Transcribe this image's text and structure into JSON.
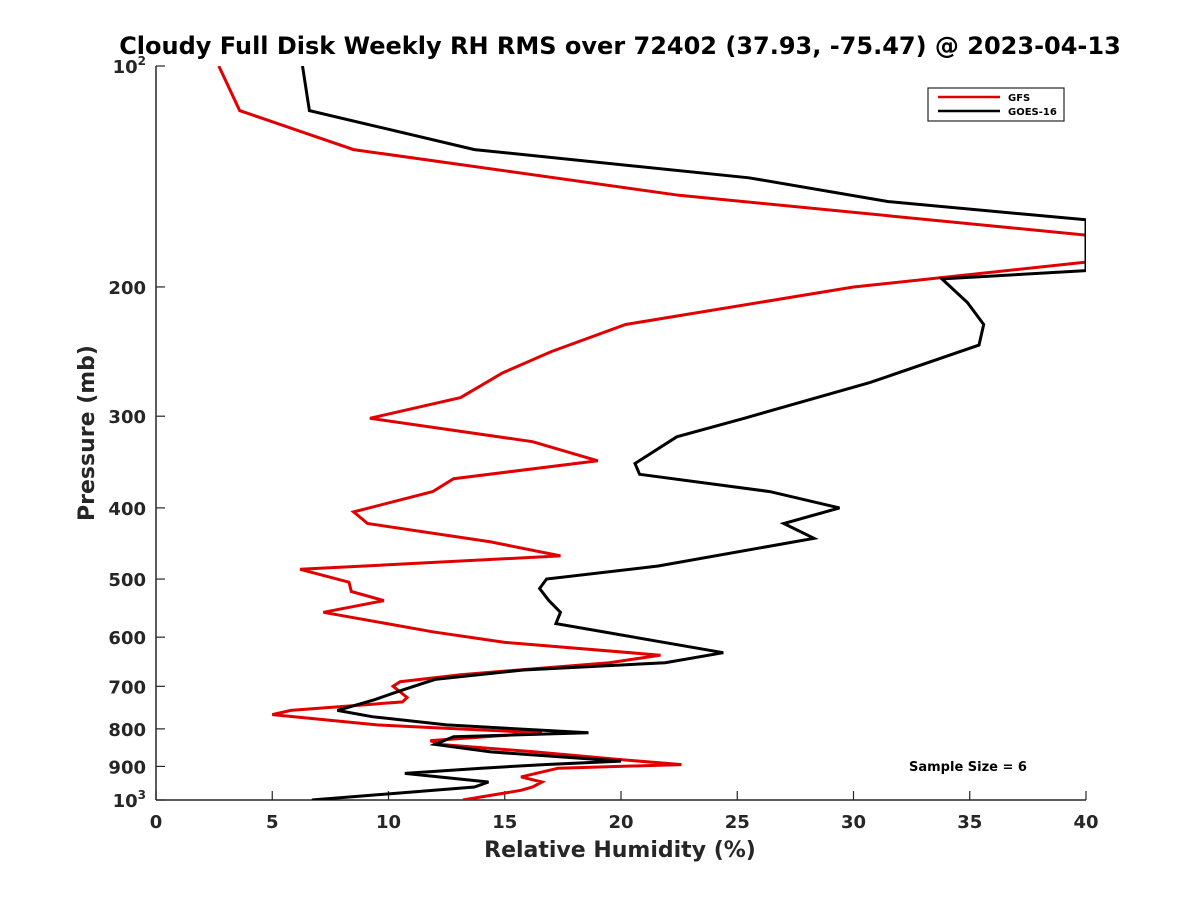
{
  "chart_data": {
    "type": "line",
    "title": "Cloudy Full Disk Weekly RH RMS over 72402 (37.93, -75.47) @ 2023-04-13",
    "xlabel": "Relative Humidity (%)",
    "ylabel": "Pressure (mb)",
    "xlim": [
      0,
      40
    ],
    "ylim": [
      100,
      1000
    ],
    "y_scale": "log",
    "y_reversed": true,
    "grid": false,
    "legend_position": "top-right",
    "x_ticks": [
      "0",
      "5",
      "10",
      "15",
      "20",
      "25",
      "30",
      "35",
      "40"
    ],
    "y_ticks": [
      {
        "value": 100,
        "base": "10",
        "exp": "2"
      },
      {
        "value": 200,
        "label": "200"
      },
      {
        "value": 300,
        "label": "300"
      },
      {
        "value": 400,
        "label": "400"
      },
      {
        "value": 500,
        "label": "500"
      },
      {
        "value": 600,
        "label": "600"
      },
      {
        "value": 700,
        "label": "700"
      },
      {
        "value": 800,
        "label": "800"
      },
      {
        "value": 900,
        "label": "900"
      },
      {
        "value": 1000,
        "base": "10",
        "exp": "3"
      }
    ],
    "annotation": "Sample Size = 6",
    "series": [
      {
        "name": "GFS",
        "color": "#e00000",
        "points": [
          [
            2.7,
            100
          ],
          [
            3.6,
            115
          ],
          [
            8.5,
            130
          ],
          [
            22.5,
            150
          ],
          [
            40,
            170
          ],
          [
            40,
            185
          ],
          [
            30,
            200
          ],
          [
            20.2,
            225
          ],
          [
            17,
            245
          ],
          [
            14.9,
            262
          ],
          [
            13.1,
            283
          ],
          [
            9.2,
            302
          ],
          [
            16.2,
            325
          ],
          [
            19.0,
            345
          ],
          [
            12.8,
            365
          ],
          [
            11.9,
            380
          ],
          [
            8.5,
            405
          ],
          [
            9.1,
            420
          ],
          [
            14.4,
            445
          ],
          [
            17.4,
            465
          ],
          [
            6.2,
            485
          ],
          [
            8.3,
            505
          ],
          [
            8.4,
            520
          ],
          [
            9.8,
            535
          ],
          [
            7.2,
            555
          ],
          [
            11.9,
            590
          ],
          [
            15.0,
            610
          ],
          [
            21.7,
            635
          ],
          [
            19.5,
            650
          ],
          [
            13.1,
            675
          ],
          [
            10.5,
            690
          ],
          [
            10.2,
            700
          ],
          [
            10.8,
            725
          ],
          [
            10.6,
            735
          ],
          [
            5.8,
            755
          ],
          [
            5.0,
            765
          ],
          [
            9.5,
            790
          ],
          [
            13.0,
            800
          ],
          [
            16.6,
            810
          ],
          [
            11.8,
            830
          ],
          [
            12.2,
            840
          ],
          [
            16.3,
            860
          ],
          [
            19.8,
            880
          ],
          [
            22.6,
            895
          ],
          [
            17.3,
            905
          ],
          [
            15.7,
            930
          ],
          [
            16.6,
            945
          ],
          [
            16.2,
            960
          ],
          [
            15.7,
            970
          ],
          [
            13.2,
            1000
          ]
        ]
      },
      {
        "name": "GOES-16",
        "color": "#000000",
        "points": [
          [
            6.3,
            100
          ],
          [
            6.6,
            115
          ],
          [
            13.7,
            130
          ],
          [
            25.5,
            142
          ],
          [
            31.5,
            153
          ],
          [
            40,
            162
          ],
          [
            40,
            190
          ],
          [
            33.8,
            195
          ],
          [
            34.9,
            210
          ],
          [
            35.6,
            225
          ],
          [
            35.4,
            240
          ],
          [
            30.7,
            270
          ],
          [
            25.3,
            302
          ],
          [
            22.4,
            320
          ],
          [
            20.6,
            348
          ],
          [
            20.8,
            360
          ],
          [
            26.4,
            380
          ],
          [
            29.4,
            400
          ],
          [
            27.0,
            420
          ],
          [
            28.3,
            440
          ],
          [
            21.6,
            480
          ],
          [
            16.8,
            500
          ],
          [
            16.5,
            515
          ],
          [
            16.9,
            535
          ],
          [
            17.4,
            555
          ],
          [
            17.2,
            575
          ],
          [
            19.9,
            595
          ],
          [
            24.4,
            630
          ],
          [
            21.9,
            650
          ],
          [
            15.8,
            665
          ],
          [
            12.0,
            685
          ],
          [
            10.5,
            710
          ],
          [
            9.4,
            730
          ],
          [
            7.8,
            755
          ],
          [
            9.3,
            770
          ],
          [
            12.5,
            790
          ],
          [
            18.6,
            810
          ],
          [
            12.8,
            820
          ],
          [
            12.0,
            840
          ],
          [
            14.4,
            860
          ],
          [
            20.0,
            885
          ],
          [
            16.7,
            895
          ],
          [
            14.0,
            905
          ],
          [
            10.7,
            920
          ],
          [
            14.3,
            945
          ],
          [
            13.7,
            960
          ],
          [
            6.7,
            1000
          ]
        ]
      }
    ]
  }
}
